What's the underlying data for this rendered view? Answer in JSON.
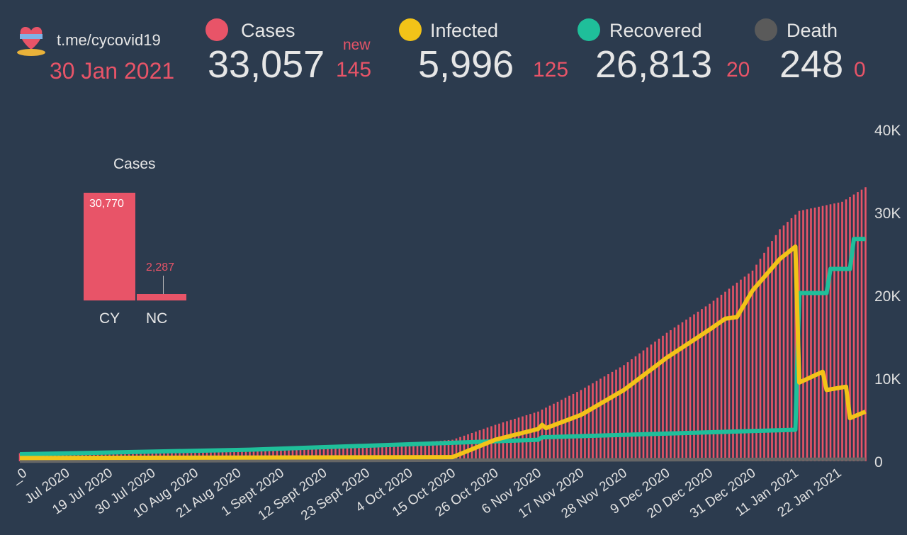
{
  "header": {
    "link": "t.me/cycovid19",
    "date": "30 Jan 2021",
    "new_label": "new"
  },
  "stats": [
    {
      "label": "Cases",
      "value": "33,057",
      "delta": "145",
      "color": "#e85468"
    },
    {
      "label": "Infected",
      "value": "5,996",
      "delta": "125",
      "color": "#f2c318"
    },
    {
      "label": "Recovered",
      "value": "26,813",
      "delta": "20",
      "color": "#1fbf9a"
    },
    {
      "label": "Death",
      "value": "248",
      "delta": "0",
      "color": "#5a5a5a"
    }
  ],
  "mini_chart": {
    "title": "Cases",
    "bars": [
      {
        "label": "CY",
        "value": 30770,
        "text": "30,770"
      },
      {
        "label": "NC",
        "value": 2287,
        "text": "2,287"
      }
    ]
  },
  "chart_data": {
    "type": "bar+line",
    "x_unit": "days since 25 Jun 2020",
    "x_tick_labels": [
      "_0",
      "Jul 2020",
      "19 Jul 2020",
      "30 Jul 2020",
      "10 Aug 2020",
      "21 Aug 2020",
      "1 Sept 2020",
      "12 Sept 2020",
      "23 Sept 2020",
      "4 Oct 2020",
      "15 Oct 2020",
      "26 Oct 2020",
      "6 Nov 2020",
      "17 Nov 2020",
      "28 Nov 2020",
      "9 Dec 2020",
      "20 Dec 2020",
      "31 Dec 2020",
      "11 Jan 2021",
      "22 Jan 2021"
    ],
    "y_ticks": [
      {
        "v": 0,
        "t": "0"
      },
      {
        "v": 10000,
        "t": "10K"
      },
      {
        "v": 20000,
        "t": "20K"
      },
      {
        "v": 30000,
        "t": "30K"
      },
      {
        "v": 40000,
        "t": "40K"
      }
    ],
    "ylim": [
      0,
      40000
    ],
    "xlim": [
      0,
      217
    ],
    "series": [
      {
        "name": "Cases",
        "type": "bar",
        "color": "#e85468",
        "points": [
          [
            0,
            980
          ],
          [
            60,
            1300
          ],
          [
            90,
            1800
          ],
          [
            111,
            2600
          ],
          [
            122,
            4400
          ],
          [
            133,
            6000
          ],
          [
            144,
            8600
          ],
          [
            155,
            11600
          ],
          [
            166,
            15500
          ],
          [
            177,
            19000
          ],
          [
            188,
            23000
          ],
          [
            195,
            28000
          ],
          [
            200,
            30200
          ],
          [
            211,
            31300
          ],
          [
            217,
            33057
          ]
        ]
      },
      {
        "name": "Infected",
        "type": "line",
        "color": "#f2c318",
        "points": [
          [
            0,
            400
          ],
          [
            111,
            500
          ],
          [
            122,
            2600
          ],
          [
            133,
            3900
          ],
          [
            134,
            4400
          ],
          [
            135,
            4000
          ],
          [
            144,
            5600
          ],
          [
            155,
            8600
          ],
          [
            166,
            12500
          ],
          [
            177,
            15900
          ],
          [
            181,
            17200
          ],
          [
            184,
            17400
          ],
          [
            188,
            20600
          ],
          [
            195,
            24400
          ],
          [
            199,
            25900
          ],
          [
            200,
            9500
          ],
          [
            206,
            10800
          ],
          [
            207,
            8600
          ],
          [
            212,
            9000
          ],
          [
            213,
            5200
          ],
          [
            217,
            5996
          ]
        ]
      },
      {
        "name": "Recovered",
        "type": "line",
        "color": "#1fbf9a",
        "points": [
          [
            0,
            850
          ],
          [
            59,
            1400
          ],
          [
            109,
            2200
          ],
          [
            133,
            2600
          ],
          [
            134,
            2900
          ],
          [
            199,
            3800
          ],
          [
            200,
            20300
          ],
          [
            207,
            20300
          ],
          [
            208,
            23200
          ],
          [
            213,
            23200
          ],
          [
            214,
            26813
          ],
          [
            217,
            26813
          ]
        ]
      },
      {
        "name": "Death",
        "type": "line",
        "color": "#666666",
        "points": [
          [
            0,
            20
          ],
          [
            217,
            248
          ]
        ]
      }
    ]
  }
}
